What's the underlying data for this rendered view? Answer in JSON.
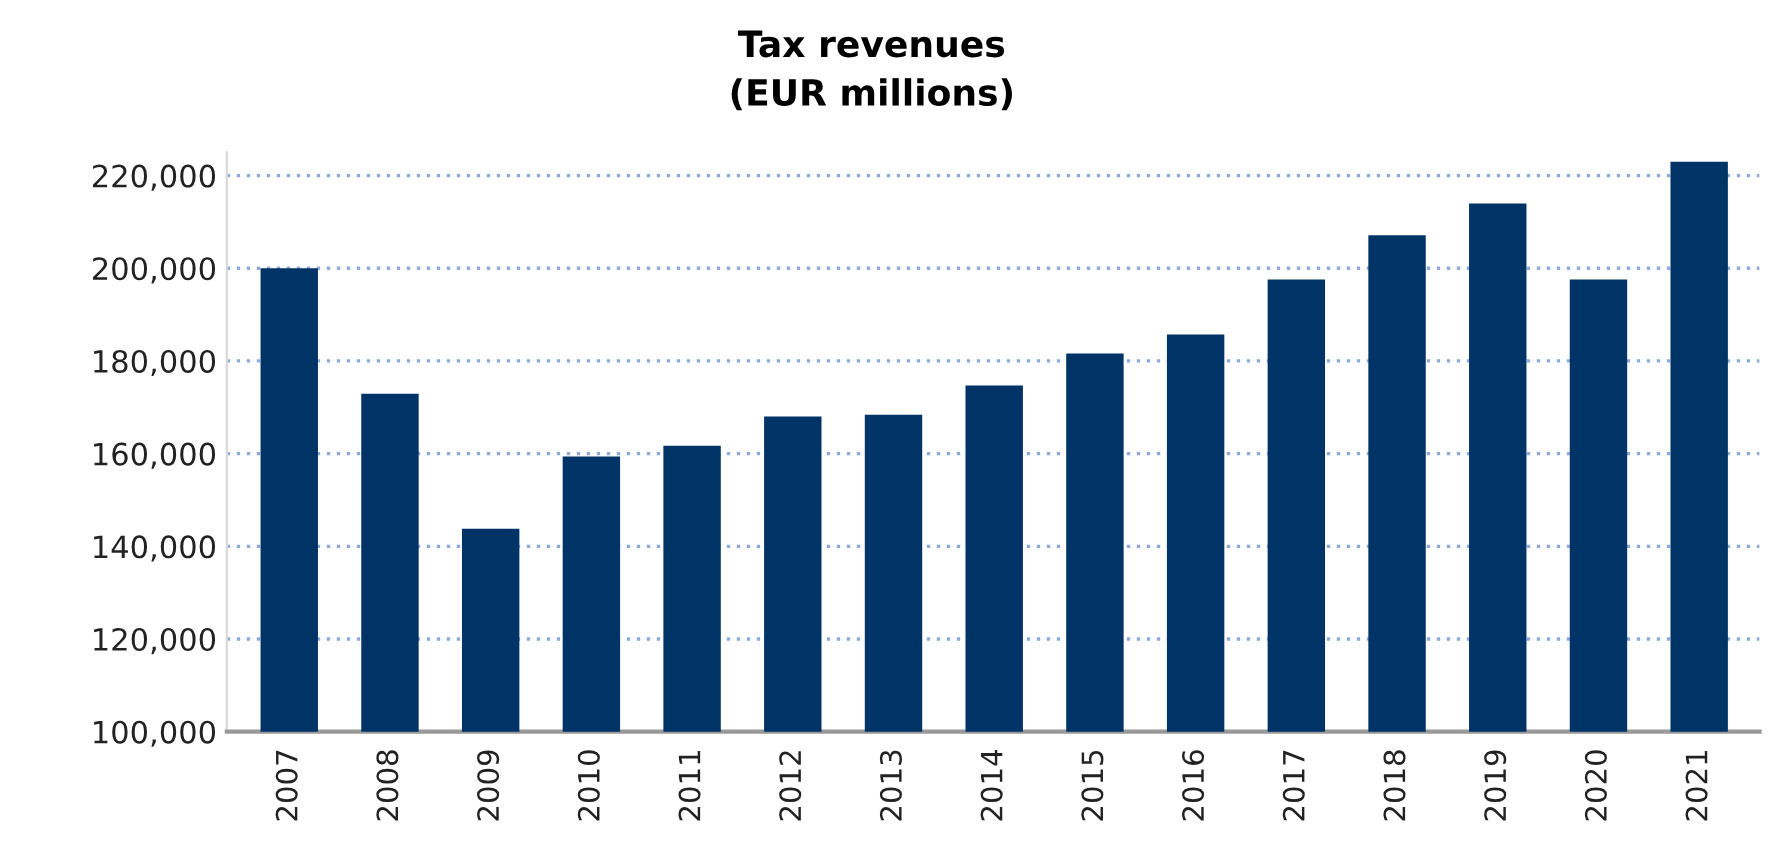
{
  "chart_data": {
    "type": "bar",
    "title": "Tax revenues\n(EUR millions)",
    "categories": [
      "2007",
      "2008",
      "2009",
      "2010",
      "2011",
      "2012",
      "2013",
      "2014",
      "2015",
      "2016",
      "2017",
      "2018",
      "2019",
      "2020",
      "2021"
    ],
    "values": [
      200000,
      172900,
      143800,
      159400,
      161700,
      168000,
      168400,
      174700,
      181600,
      185700,
      197600,
      207100,
      214000,
      197600,
      223000
    ],
    "color": "#003366",
    "ylim": [
      100000,
      225000
    ],
    "yticks": [
      {
        "value": 100000,
        "label": "100,000"
      },
      {
        "value": 120000,
        "label": "120,000"
      },
      {
        "value": 140000,
        "label": "140,000"
      },
      {
        "value": 160000,
        "label": "160,000"
      },
      {
        "value": 180000,
        "label": "180,000"
      },
      {
        "value": 200000,
        "label": "200,000"
      },
      {
        "value": 220000,
        "label": "220,000"
      }
    ],
    "grid": "y",
    "legend": false
  }
}
